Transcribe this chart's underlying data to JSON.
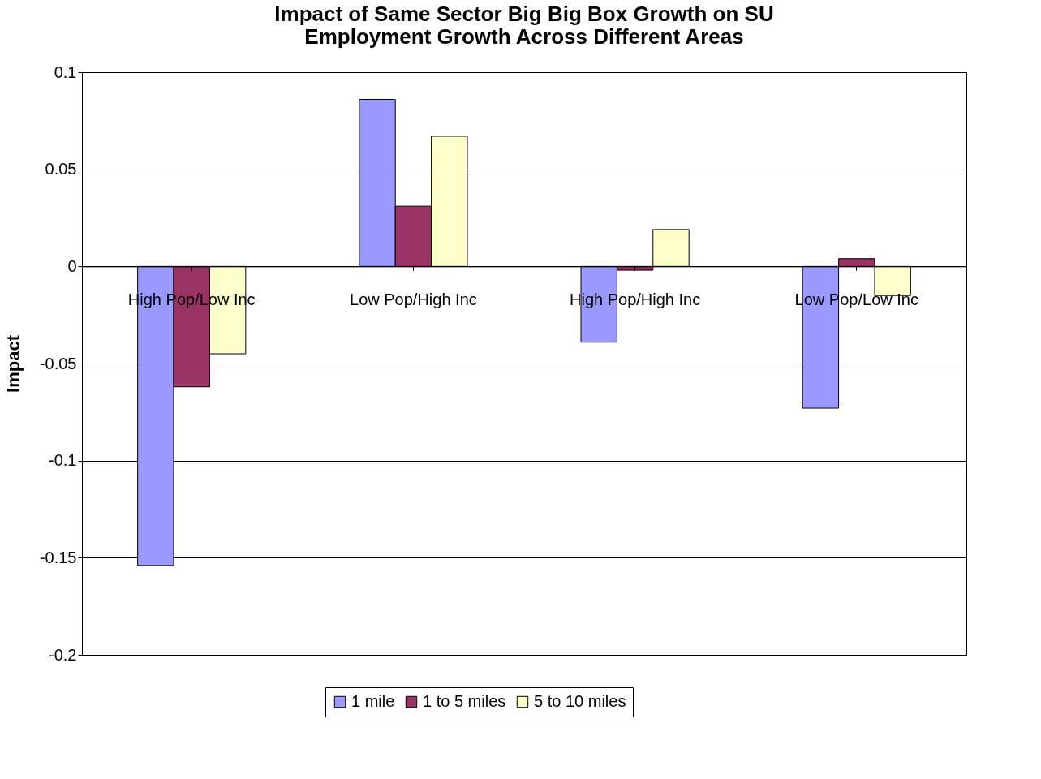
{
  "chart_data": {
    "type": "bar",
    "title": "Impact of Same Sector Big Big Box Growth on SU Employment Growth Across Different Areas",
    "ylabel": "Impact",
    "categories": [
      "High Pop/Low Inc",
      "Low Pop/High Inc",
      "High Pop/High Inc",
      "Low Pop/Low Inc"
    ],
    "series": [
      {
        "name": "1 mile",
        "color": "#9999ff",
        "values": [
          -0.154,
          0.086,
          -0.039,
          -0.073
        ]
      },
      {
        "name": "1 to 5 miles",
        "color": "#993366",
        "values": [
          -0.062,
          0.031,
          -0.002,
          0.004
        ]
      },
      {
        "name": "5 to 10 miles",
        "color": "#ffffcc",
        "values": [
          -0.045,
          0.067,
          0.019,
          -0.015
        ]
      }
    ],
    "ylim": [
      -0.2,
      0.1
    ],
    "yticks": [
      -0.2,
      -0.15,
      -0.1,
      -0.05,
      0,
      0.05,
      0.1
    ],
    "grid": "y",
    "legend": "bottom"
  }
}
